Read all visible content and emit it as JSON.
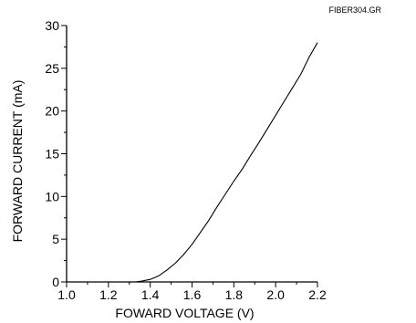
{
  "figure_id": "FIBER304.GR",
  "chart_data": {
    "type": "line",
    "title": "",
    "xlabel": "FOWARD VOLTAGE (V)",
    "ylabel": "FORWARD CURRENT (mA)",
    "xlim": [
      1.0,
      2.2
    ],
    "ylim": [
      0,
      30
    ],
    "xticks": [
      1.0,
      1.2,
      1.4,
      1.6,
      1.8,
      2.0,
      2.2
    ],
    "xtick_labels": [
      "1.0",
      "1.2",
      "1.4",
      "1.6",
      "1.8",
      "2.0",
      "2.2"
    ],
    "yticks": [
      0,
      5,
      10,
      15,
      20,
      25,
      30
    ],
    "ytick_labels": [
      "0",
      "5",
      "10",
      "15",
      "20",
      "25",
      "30"
    ],
    "grid": false,
    "legend": "none",
    "series": [
      {
        "x": [
          1.33,
          1.36,
          1.4,
          1.44,
          1.48,
          1.52,
          1.56,
          1.6,
          1.64,
          1.68,
          1.72,
          1.76,
          1.8,
          1.84,
          1.88,
          1.92,
          1.96,
          2.0,
          2.04,
          2.08,
          2.12,
          2.16,
          2.2
        ],
        "y": [
          0.0,
          0.1,
          0.3,
          0.7,
          1.4,
          2.2,
          3.2,
          4.4,
          5.8,
          7.2,
          8.8,
          10.3,
          11.8,
          13.2,
          14.8,
          16.3,
          17.9,
          19.5,
          21.1,
          22.7,
          24.3,
          26.3,
          28.0
        ],
        "color": "#000000"
      }
    ]
  }
}
